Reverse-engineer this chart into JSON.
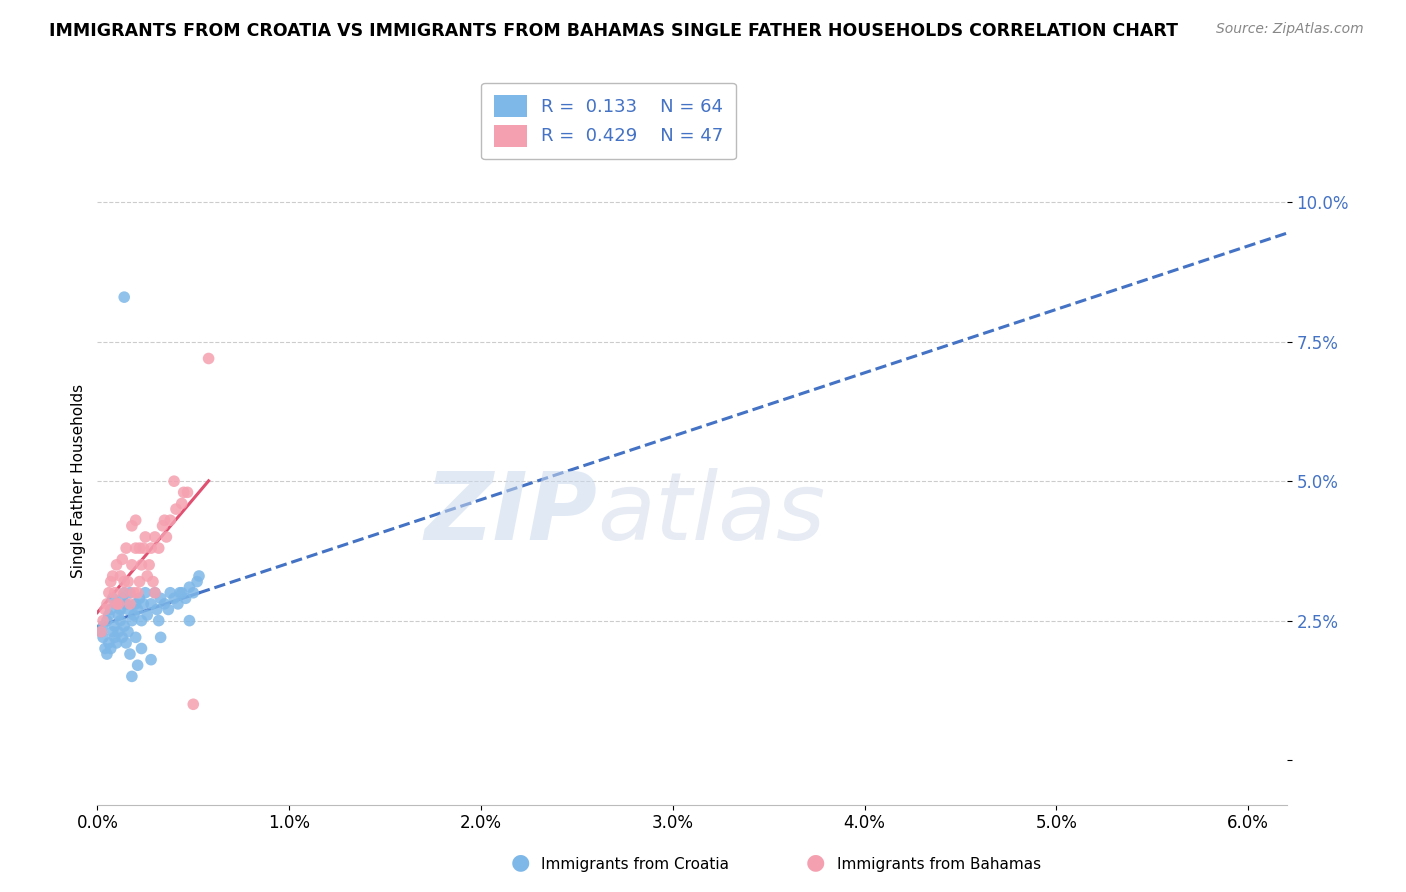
{
  "title": "IMMIGRANTS FROM CROATIA VS IMMIGRANTS FROM BAHAMAS SINGLE FATHER HOUSEHOLDS CORRELATION CHART",
  "source": "Source: ZipAtlas.com",
  "ylabel": "Single Father Households",
  "xlim": [
    0.0,
    0.062
  ],
  "ylim": [
    -0.008,
    0.108
  ],
  "yticks": [
    0.0,
    0.025,
    0.05,
    0.075,
    0.1
  ],
  "ytick_labels": [
    "",
    "2.5%",
    "5.0%",
    "7.5%",
    "10.0%"
  ],
  "xticks": [
    0.0,
    0.01,
    0.02,
    0.03,
    0.04,
    0.05,
    0.06
  ],
  "xtick_labels": [
    "0.0%",
    "1.0%",
    "2.0%",
    "3.0%",
    "4.0%",
    "5.0%",
    "6.0%"
  ],
  "croatia_color": "#7EB8E8",
  "bahamas_color": "#F5A0B0",
  "trend_croatia_color": "#4472C4",
  "trend_bahamas_color": "#E05070",
  "R_croatia": 0.133,
  "N_croatia": 64,
  "R_bahamas": 0.429,
  "N_bahamas": 47,
  "croatia_x": [
    0.0002,
    0.0003,
    0.0003,
    0.0004,
    0.0005,
    0.0005,
    0.0006,
    0.0006,
    0.0007,
    0.0007,
    0.0008,
    0.0008,
    0.0009,
    0.0009,
    0.001,
    0.001,
    0.0011,
    0.0011,
    0.0012,
    0.0012,
    0.0013,
    0.0013,
    0.0014,
    0.0014,
    0.0015,
    0.0015,
    0.0016,
    0.0016,
    0.0017,
    0.0017,
    0.0018,
    0.0019,
    0.002,
    0.002,
    0.0021,
    0.0022,
    0.0023,
    0.0024,
    0.0025,
    0.0026,
    0.0028,
    0.003,
    0.0031,
    0.0032,
    0.0033,
    0.0035,
    0.0037,
    0.0038,
    0.004,
    0.0042,
    0.0044,
    0.0046,
    0.0048,
    0.005,
    0.0052,
    0.0018,
    0.0023,
    0.0028,
    0.0033,
    0.0043,
    0.0048,
    0.0053,
    0.0021,
    0.0014
  ],
  "croatia_y": [
    0.023,
    0.024,
    0.022,
    0.02,
    0.025,
    0.019,
    0.026,
    0.021,
    0.027,
    0.02,
    0.029,
    0.023,
    0.024,
    0.022,
    0.028,
    0.021,
    0.026,
    0.023,
    0.027,
    0.025,
    0.029,
    0.022,
    0.03,
    0.024,
    0.028,
    0.021,
    0.027,
    0.023,
    0.03,
    0.019,
    0.025,
    0.026,
    0.028,
    0.022,
    0.027,
    0.029,
    0.025,
    0.028,
    0.03,
    0.026,
    0.028,
    0.03,
    0.027,
    0.025,
    0.029,
    0.028,
    0.027,
    0.03,
    0.029,
    0.028,
    0.03,
    0.029,
    0.031,
    0.03,
    0.032,
    0.015,
    0.02,
    0.018,
    0.022,
    0.03,
    0.025,
    0.033,
    0.017,
    0.083
  ],
  "bahamas_x": [
    0.0002,
    0.0003,
    0.0004,
    0.0005,
    0.0006,
    0.0007,
    0.0008,
    0.0009,
    0.001,
    0.0011,
    0.0012,
    0.0013,
    0.0014,
    0.0015,
    0.0016,
    0.0017,
    0.0018,
    0.0019,
    0.002,
    0.0021,
    0.0022,
    0.0023,
    0.0024,
    0.0025,
    0.0026,
    0.0027,
    0.0028,
    0.0029,
    0.003,
    0.0032,
    0.0034,
    0.0036,
    0.0038,
    0.0041,
    0.0044,
    0.0047,
    0.003,
    0.002,
    0.001,
    0.0014,
    0.0018,
    0.0022,
    0.0035,
    0.004,
    0.0045,
    0.005,
    0.0058
  ],
  "bahamas_y": [
    0.023,
    0.025,
    0.027,
    0.028,
    0.03,
    0.032,
    0.033,
    0.03,
    0.035,
    0.028,
    0.033,
    0.036,
    0.03,
    0.038,
    0.032,
    0.028,
    0.035,
    0.03,
    0.038,
    0.03,
    0.032,
    0.035,
    0.038,
    0.04,
    0.033,
    0.035,
    0.038,
    0.032,
    0.04,
    0.038,
    0.042,
    0.04,
    0.043,
    0.045,
    0.046,
    0.048,
    0.03,
    0.043,
    0.028,
    0.032,
    0.042,
    0.038,
    0.043,
    0.05,
    0.048,
    0.01,
    0.072
  ],
  "watermark_zip": "ZIP",
  "watermark_atlas": "atlas",
  "background_color": "#FFFFFF",
  "grid_color": "#CCCCCC",
  "label_color": "#4472C4",
  "title_fontsize": 12.5,
  "axis_label_fontsize": 11,
  "tick_fontsize": 12
}
